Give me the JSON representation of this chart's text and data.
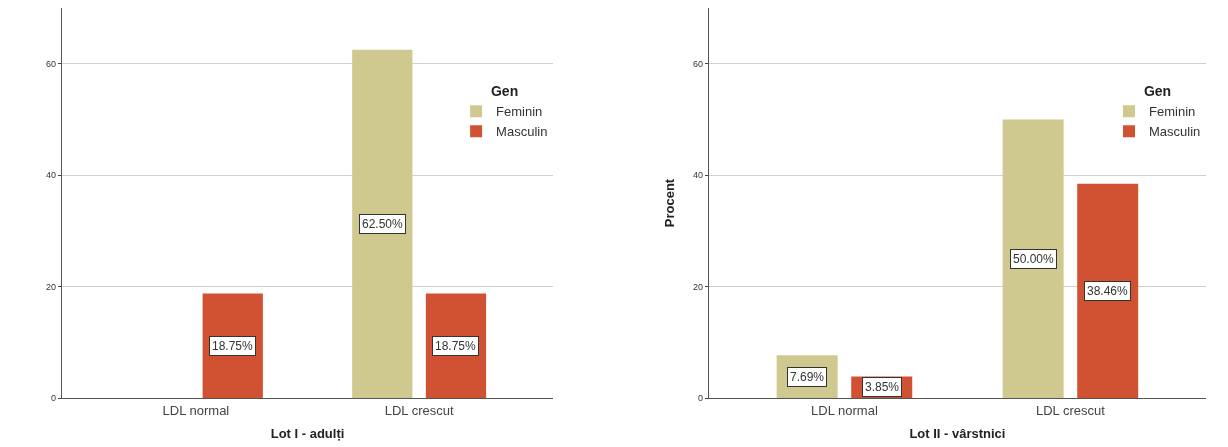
{
  "chart_data": [
    {
      "type": "bar",
      "xlabel": "Lot I - adulți",
      "categories": [
        "LDL normal",
        "LDL crescut"
      ],
      "legend_title": "Gen",
      "legend": "top right",
      "grid": "y",
      "ylim": [
        0,
        70
      ],
      "yticks": [
        0,
        20,
        40,
        60
      ],
      "series": [
        {
          "name": "Feminin",
          "color": "#d0c98f",
          "values": [
            null,
            62.5
          ],
          "value_labels": [
            null,
            "62.50%"
          ]
        },
        {
          "name": "Masculin",
          "color": "#d05232",
          "values": [
            18.75,
            18.75
          ],
          "value_labels": [
            "18.75%",
            "18.75%"
          ]
        }
      ]
    },
    {
      "type": "bar",
      "xlabel": "Lot II - vârstnici",
      "ylabel": "Procent",
      "categories": [
        "LDL normal",
        "LDL crescut"
      ],
      "legend_title": "Gen",
      "legend": "top right",
      "grid": "y",
      "ylim": [
        0,
        70
      ],
      "yticks": [
        0,
        20,
        40,
        60
      ],
      "series": [
        {
          "name": "Feminin",
          "color": "#d0c98f",
          "values": [
            7.69,
            50.0
          ],
          "value_labels": [
            "7.69%",
            "50.00%"
          ]
        },
        {
          "name": "Masculin",
          "color": "#d05232",
          "values": [
            3.85,
            38.46
          ],
          "value_labels": [
            "3.85%",
            "38.46%"
          ]
        }
      ]
    }
  ]
}
